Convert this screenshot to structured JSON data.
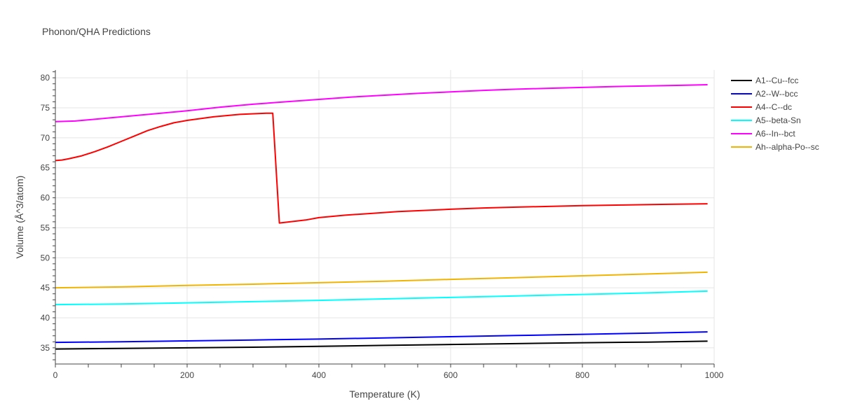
{
  "chart_data": {
    "type": "line",
    "title": "Phonon/QHA Predictions",
    "xlabel": "Temperature (K)",
    "ylabel": "Volume (Å^3/atom)",
    "xlim": [
      0,
      1000
    ],
    "ylim": [
      32.3,
      81.3
    ],
    "xticks": [
      0,
      200,
      400,
      600,
      800,
      1000
    ],
    "yticks": [
      35,
      40,
      45,
      50,
      55,
      60,
      65,
      70,
      75,
      80
    ],
    "grid": true,
    "legend_position": "right",
    "series": [
      {
        "name": "A1--Cu--fcc",
        "color": "#000000",
        "x": [
          0,
          100,
          200,
          300,
          400,
          500,
          600,
          700,
          800,
          900,
          990
        ],
        "y": [
          34.8,
          34.9,
          35.0,
          35.1,
          35.25,
          35.4,
          35.55,
          35.7,
          35.85,
          35.95,
          36.1
        ]
      },
      {
        "name": "A2--W--bcc",
        "color": "#0000ff",
        "x": [
          0,
          100,
          200,
          300,
          400,
          500,
          600,
          700,
          800,
          900,
          990
        ],
        "y": [
          35.9,
          36.0,
          36.15,
          36.3,
          36.45,
          36.65,
          36.85,
          37.05,
          37.25,
          37.45,
          37.65
        ]
      },
      {
        "name": "A4--C--dc",
        "color": "#ff0000",
        "x": [
          0,
          10,
          20,
          40,
          60,
          80,
          100,
          120,
          140,
          160,
          180,
          200,
          240,
          280,
          320,
          330,
          340,
          380,
          400,
          440,
          480,
          520,
          560,
          600,
          650,
          700,
          760,
          800,
          860,
          920,
          990
        ],
        "y": [
          66.2,
          66.3,
          66.5,
          67.0,
          67.7,
          68.5,
          69.4,
          70.3,
          71.2,
          71.9,
          72.5,
          72.9,
          73.5,
          73.9,
          74.1,
          74.1,
          55.8,
          56.3,
          56.7,
          57.1,
          57.4,
          57.7,
          57.9,
          58.1,
          58.3,
          58.45,
          58.6,
          58.7,
          58.8,
          58.9,
          59.0
        ]
      },
      {
        "name": "A5--beta-Sn",
        "color": "#00ffff",
        "x": [
          0,
          100,
          200,
          300,
          400,
          500,
          600,
          700,
          800,
          900,
          990
        ],
        "y": [
          42.2,
          42.3,
          42.5,
          42.7,
          42.9,
          43.15,
          43.4,
          43.65,
          43.9,
          44.15,
          44.45
        ]
      },
      {
        "name": "A6--In--bct",
        "color": "#ff00ff",
        "x": [
          0,
          30,
          80,
          150,
          200,
          250,
          300,
          350,
          400,
          450,
          500,
          550,
          600,
          650,
          700,
          750,
          800,
          850,
          900,
          950,
          990
        ],
        "y": [
          72.7,
          72.8,
          73.3,
          74.0,
          74.5,
          75.1,
          75.6,
          76.0,
          76.4,
          76.8,
          77.1,
          77.4,
          77.65,
          77.9,
          78.1,
          78.25,
          78.4,
          78.55,
          78.65,
          78.75,
          78.85
        ]
      },
      {
        "name": "Ah--alpha-Po--sc",
        "color": "#f0b400",
        "x": [
          0,
          100,
          200,
          300,
          400,
          500,
          600,
          700,
          800,
          900,
          990
        ],
        "y": [
          45.0,
          45.15,
          45.4,
          45.6,
          45.85,
          46.1,
          46.4,
          46.7,
          47.0,
          47.3,
          47.6
        ]
      }
    ]
  }
}
